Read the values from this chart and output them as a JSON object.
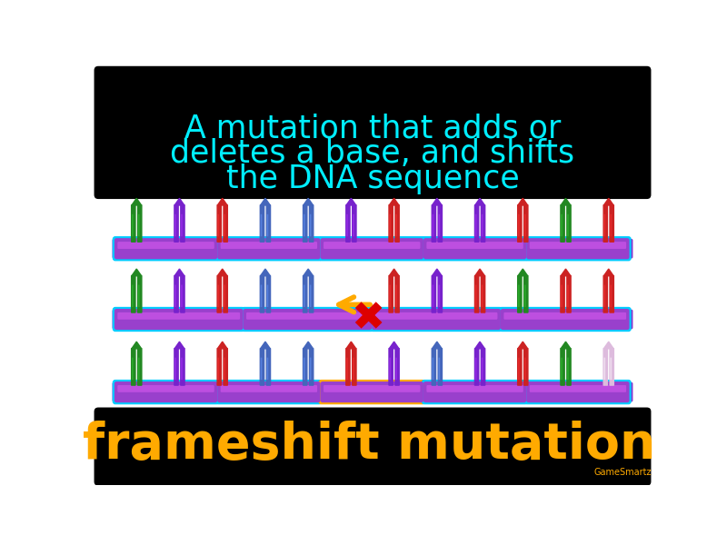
{
  "bg_color": "#ffffff",
  "top_box_color": "#000000",
  "top_text_line1": "A mutation that adds or",
  "top_text_line2": "deletes a base, and shifts",
  "top_text_line3": "the DNA sequence",
  "top_text_color": "#00eeff",
  "bottom_box_color": "#000000",
  "bottom_text": "frameshift mutation",
  "bottom_text_color": "#ffaa00",
  "watermark": "GameSmartz",
  "watermark_color": "#ffaa00",
  "backbone_color": "#8833cc",
  "backbone_fill": "#9940cc",
  "backbone_border_cyan": "#00ccff",
  "backbone_border_orange": "#ffaa00",
  "arrow_color": "#ffaa00",
  "cross_color": "#dd0000",
  "pin_colors_row1": [
    "#228822",
    "#7722cc",
    "#cc2222",
    "#4466bb",
    "#4466bb",
    "#7722cc",
    "#cc2222",
    "#7722cc",
    "#7722cc",
    "#cc2222",
    "#228822",
    "#cc2222"
  ],
  "pin_colors_row2": [
    "#228822",
    "#7722cc",
    "#cc2222",
    "#4466bb",
    "#4466bb",
    "#7722cc",
    "#cc2222",
    "#7722cc",
    "#cc2222",
    "#228822",
    "#cc2222",
    "#cc2222"
  ],
  "pin_colors_row3": [
    "#228822",
    "#7722cc",
    "#cc2222",
    "#4466bb",
    "#4466bb",
    "#cc2222",
    "#7722cc",
    "#4466bb",
    "#7722cc",
    "#cc2222",
    "#228822",
    "#ddbbdd"
  ]
}
